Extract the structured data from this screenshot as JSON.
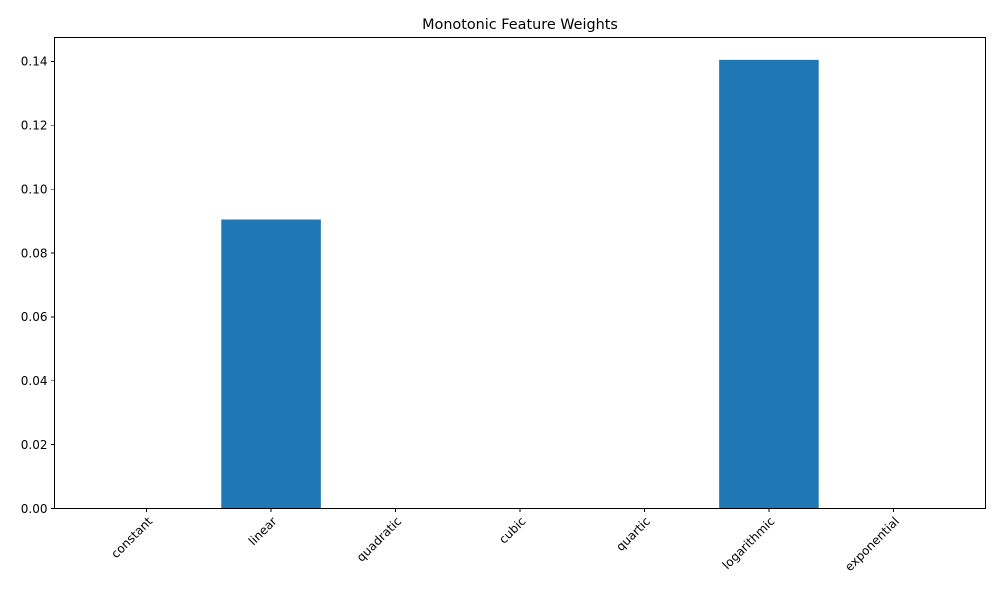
{
  "chart_data": {
    "type": "bar",
    "title": "Monotonic Feature Weights",
    "xlabel": "",
    "ylabel": "",
    "categories": [
      "constant",
      "linear",
      "quadratic",
      "cubic",
      "quartic",
      "logarithmic",
      "exponential"
    ],
    "values": [
      0,
      0.0905,
      0,
      0,
      0,
      0.1405,
      0
    ],
    "ylim": [
      0,
      0.1475
    ],
    "yticks": [
      0.0,
      0.02,
      0.04,
      0.06,
      0.08,
      0.1,
      0.12,
      0.14
    ],
    "ytick_labels": [
      "0.00",
      "0.02",
      "0.04",
      "0.06",
      "0.08",
      "0.10",
      "0.12",
      "0.14"
    ],
    "bar_color": "#1f77b4",
    "grid": false,
    "legend": "none",
    "xtick_rotation_deg": 45
  }
}
